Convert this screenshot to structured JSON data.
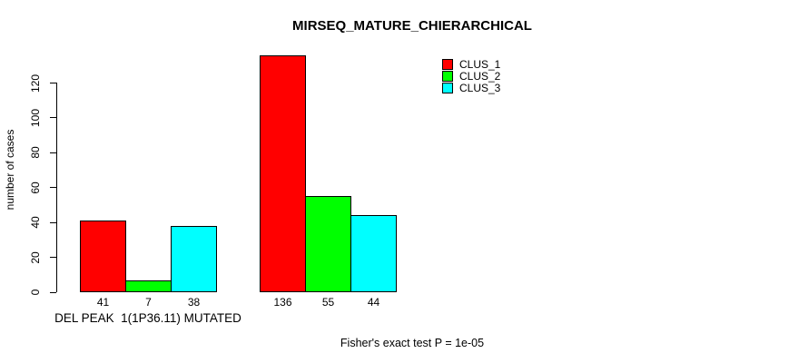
{
  "title": "MIRSEQ_MATURE_CHIERARCHICAL",
  "footnote": "Fisher's exact test P = 1e-05",
  "chart_data": {
    "type": "bar",
    "title": "MIRSEQ_MATURE_CHIERARCHICAL",
    "xlabel": "",
    "ylabel": "number of cases",
    "ylim": [
      0,
      136
    ],
    "yticks": [
      0,
      20,
      40,
      60,
      80,
      100,
      120
    ],
    "grid": false,
    "legend_position": "top-right",
    "categories": [
      "DEL PEAK  1(1P36.11) MUTATED",
      ""
    ],
    "series": [
      {
        "name": "CLUS_1",
        "color": "#ff0000",
        "values": [
          41,
          136
        ]
      },
      {
        "name": "CLUS_2",
        "color": "#00ff00",
        "values": [
          7,
          55
        ]
      },
      {
        "name": "CLUS_3",
        "color": "#00ffff",
        "values": [
          38,
          44
        ]
      }
    ],
    "bar_labels": [
      [
        "41",
        "7",
        "38"
      ],
      [
        "136",
        "55",
        "44"
      ]
    ],
    "annotation": "Fisher's exact test P = 1e-05"
  }
}
